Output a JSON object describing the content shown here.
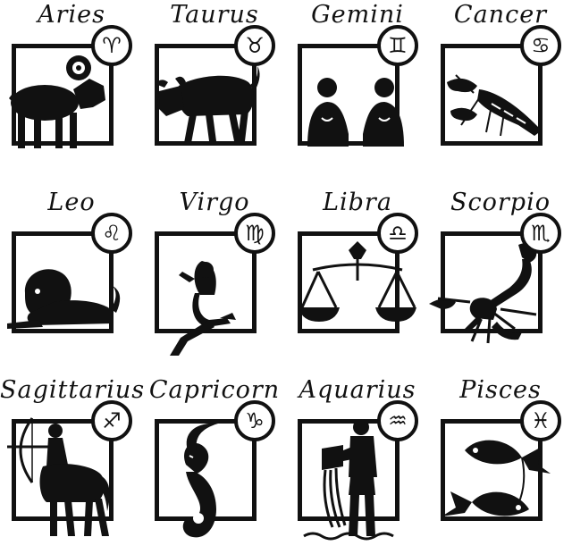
{
  "signs": [
    {
      "name": "Aries",
      "glyph": "♈",
      "icon": "ram-icon"
    },
    {
      "name": "Taurus",
      "glyph": "♉",
      "icon": "bull-icon"
    },
    {
      "name": "Gemini",
      "glyph": "♊",
      "icon": "twins-icon"
    },
    {
      "name": "Cancer",
      "glyph": "♋",
      "icon": "crayfish-icon"
    },
    {
      "name": "Leo",
      "glyph": "♌",
      "icon": "lion-icon"
    },
    {
      "name": "Virgo",
      "glyph": "♍",
      "icon": "maiden-icon"
    },
    {
      "name": "Libra",
      "glyph": "♎",
      "icon": "scales-icon"
    },
    {
      "name": "Scorpio",
      "glyph": "♏",
      "icon": "scorpion-icon"
    },
    {
      "name": "Sagittarius",
      "glyph": "♐",
      "icon": "archer-centaur-icon"
    },
    {
      "name": "Capricorn",
      "glyph": "♑",
      "icon": "sea-goat-icon"
    },
    {
      "name": "Aquarius",
      "glyph": "♒",
      "icon": "water-bearer-icon"
    },
    {
      "name": "Pisces",
      "glyph": "♓",
      "icon": "fishes-icon"
    }
  ],
  "colors": {
    "ink": "#111111",
    "paper": "#ffffff"
  }
}
